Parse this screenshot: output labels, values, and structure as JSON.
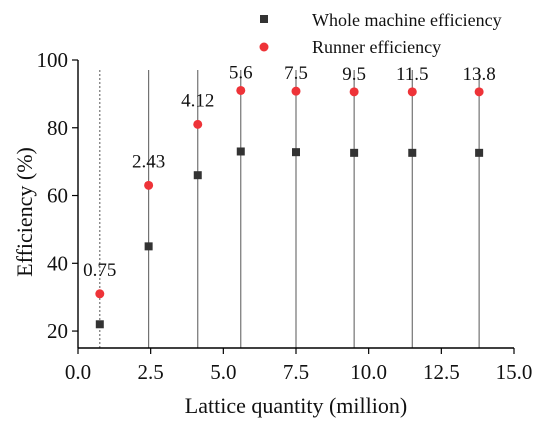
{
  "chart_data": {
    "type": "scatter",
    "x": [
      0.75,
      2.43,
      4.12,
      5.6,
      7.5,
      9.5,
      11.5,
      13.8
    ],
    "point_labels": [
      "0.75",
      "2.43",
      "4.12",
      "5.6",
      "7.5",
      "9.5",
      "11.5",
      "13.8"
    ],
    "series": [
      {
        "name": "Whole machine efficiency",
        "marker": "square",
        "color": "#333333",
        "values": [
          22,
          45,
          66,
          73,
          72.8,
          72.6,
          72.6,
          72.6
        ]
      },
      {
        "name": "Runner efficiency",
        "marker": "circle",
        "color": "#ee3338",
        "values": [
          31,
          63,
          81,
          91,
          90.8,
          90.6,
          90.6,
          90.6
        ]
      }
    ],
    "xlabel": "Lattice quantity (million)",
    "ylabel": "Efficiency (%)",
    "xlim": [
      0,
      15
    ],
    "ylim": [
      15,
      100
    ],
    "xticks": [
      0.0,
      2.5,
      5.0,
      7.5,
      10.0,
      12.5,
      15.0
    ],
    "xtick_labels": [
      "0.0",
      "2.5",
      "5.0",
      "7.5",
      "10.0",
      "12.5",
      "15.0"
    ],
    "yticks": [
      20,
      40,
      60,
      80,
      100
    ],
    "ytick_labels": [
      "20",
      "40",
      "60",
      "80",
      "100"
    ],
    "legend": "top-right",
    "grid": false
  }
}
